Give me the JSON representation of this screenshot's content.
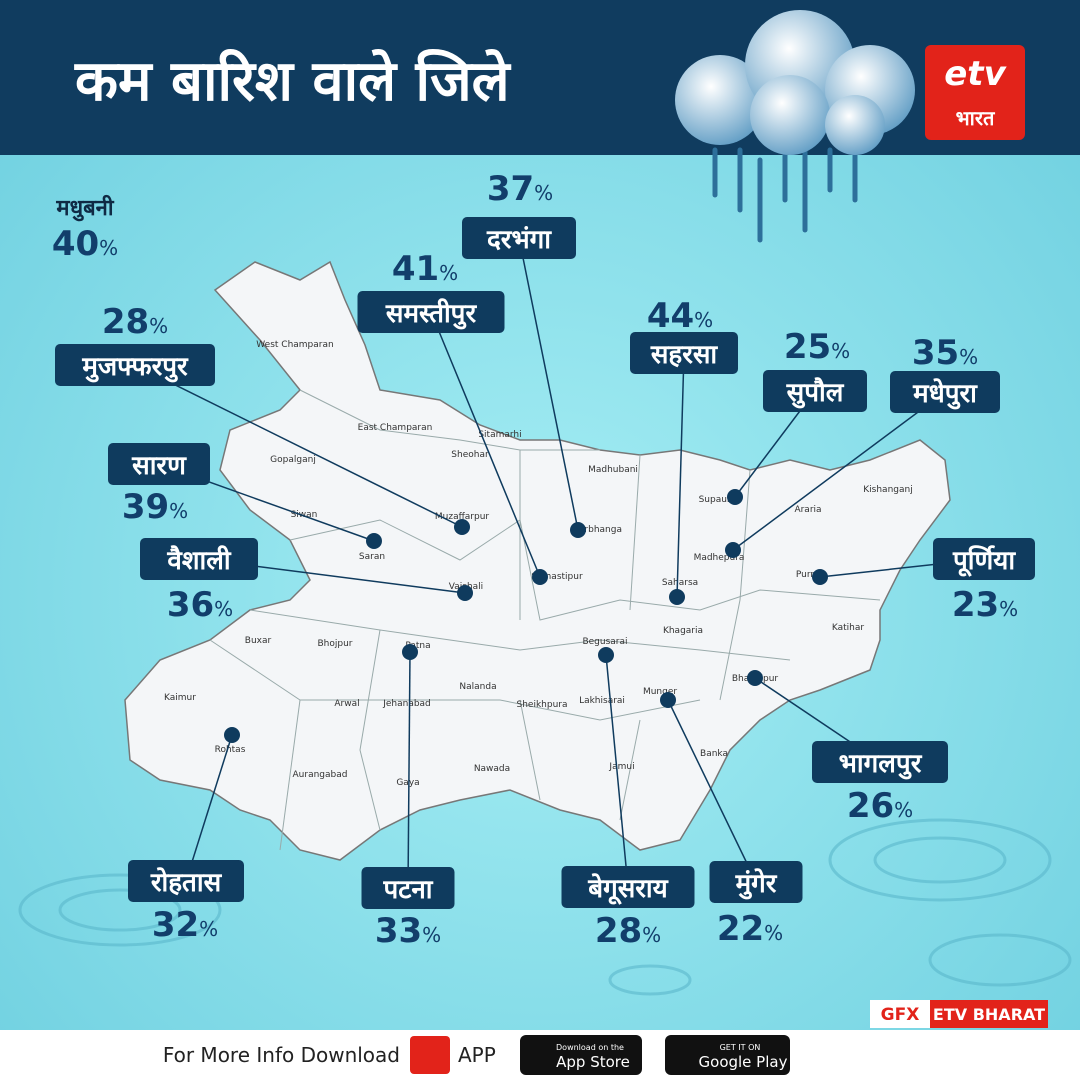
{
  "header": {
    "title": "कम बारिश वाले जिले",
    "logo": "भारत"
  },
  "districts": [
    {
      "name": "मधुबनी",
      "value": 40,
      "unit": "%"
    },
    {
      "name": "दरभंगा",
      "value": 37,
      "unit": "%"
    },
    {
      "name": "समस्तीपुर",
      "value": 41,
      "unit": "%"
    },
    {
      "name": "मुजफ्फरपुर",
      "value": 28,
      "unit": "%"
    },
    {
      "name": "सहरसा",
      "value": 44,
      "unit": "%"
    },
    {
      "name": "सुपौल",
      "value": 25,
      "unit": "%"
    },
    {
      "name": "मधेपुरा",
      "value": 35,
      "unit": "%"
    },
    {
      "name": "सारण",
      "value": 39,
      "unit": "%"
    },
    {
      "name": "वैशाली",
      "value": 36,
      "unit": "%"
    },
    {
      "name": "पूर्णिया",
      "value": 23,
      "unit": "%"
    },
    {
      "name": "भागलपुर",
      "value": 26,
      "unit": "%"
    },
    {
      "name": "रोहतास",
      "value": 32,
      "unit": "%"
    },
    {
      "name": "पटना",
      "value": 33,
      "unit": "%"
    },
    {
      "name": "बेगूसराय",
      "value": 28,
      "unit": "%"
    },
    {
      "name": "मुंगेर",
      "value": 22,
      "unit": "%"
    }
  ],
  "map_labels": [
    "West Champaran",
    "East Champaran",
    "Sitamarhi",
    "Sheohar",
    "Gopalganj",
    "Madhubani",
    "Supaul",
    "Araria",
    "Kishanganj",
    "Siwan",
    "Muzaffarpur",
    "Darbhanga",
    "Saran",
    "Madhepura",
    "Vaishali",
    "Samastipur",
    "Saharsa",
    "Purnia",
    "Buxar",
    "Bhojpur",
    "Patna",
    "Begusarai",
    "Khagaria",
    "Katihar",
    "Kaimur",
    "Nalanda",
    "Arwal",
    "Jehanabad",
    "Sheikhpura",
    "Lakhisarai",
    "Munger",
    "Bhagalpur",
    "Rohtas",
    "Aurangabad",
    "Gaya",
    "Nawada",
    "Jamui",
    "Banka"
  ],
  "footer": {
    "credit_prefix": "GFX",
    "credit": "ETV BHARAT",
    "download": "For More Info Download",
    "app": "APP",
    "apple_small": "Download on the",
    "apple": "App Store",
    "google_small": "GET IT ON",
    "google": "Google Play"
  }
}
